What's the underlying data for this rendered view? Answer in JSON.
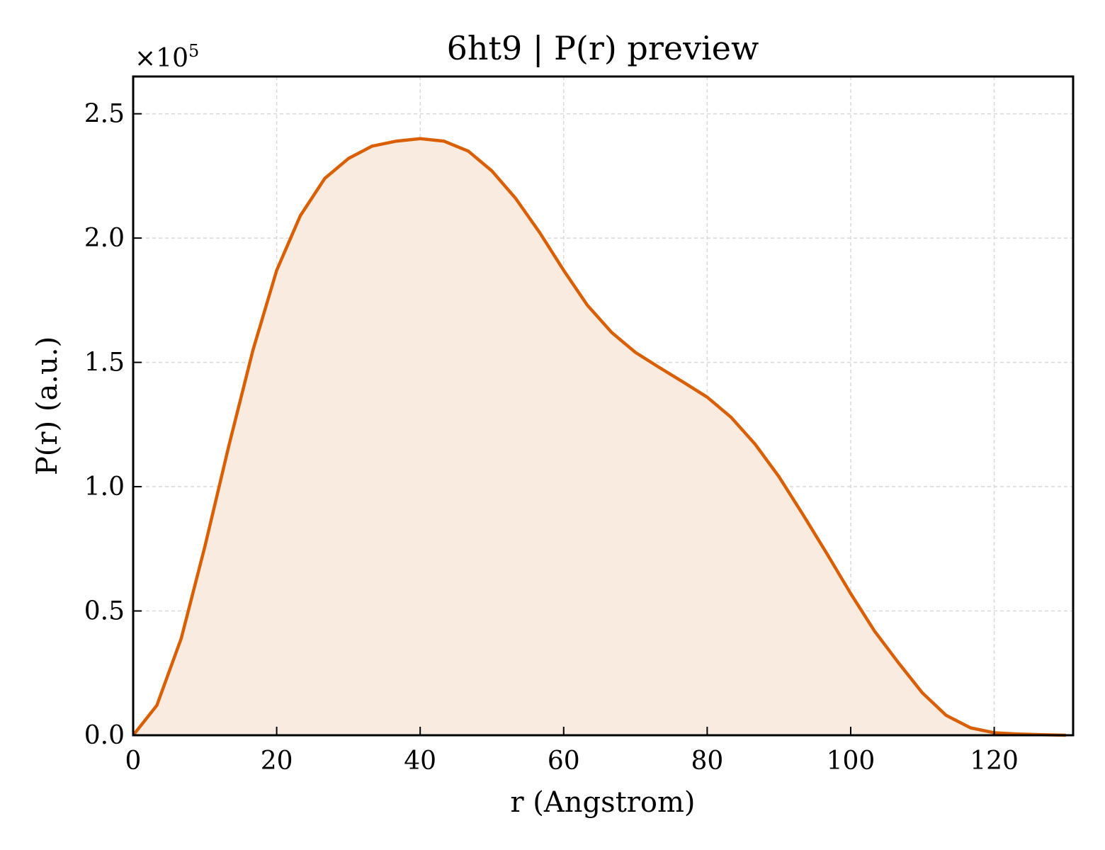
{
  "chart_data": {
    "type": "area",
    "title": "6ht9 | P(r) preview",
    "xlabel": "r (Angstrom)",
    "ylabel": "P(r) (a.u.)",
    "y_scale_multiplier": "×10",
    "y_scale_exponent": "5",
    "xlim": [
      0,
      131
    ],
    "ylim": [
      0,
      2.65
    ],
    "x_ticks": [
      0,
      20,
      40,
      60,
      80,
      100,
      120
    ],
    "x_tick_labels": [
      "0",
      "20",
      "40",
      "60",
      "80",
      "100",
      "120"
    ],
    "y_ticks": [
      0,
      0.5,
      1.0,
      1.5,
      2.0,
      2.5
    ],
    "y_tick_labels": [
      "0.0",
      "0.5",
      "1.0",
      "1.5",
      "2.0",
      "2.5"
    ],
    "grid": true,
    "line_color": "#d95f02",
    "fill_color": "#f9ebe0",
    "series": [
      {
        "x": [
          0,
          3.3,
          6.7,
          10.0,
          13.3,
          16.7,
          20.0,
          23.3,
          26.7,
          30.0,
          33.3,
          36.7,
          40.0,
          43.3,
          46.7,
          50.0,
          53.3,
          56.7,
          60.0,
          63.3,
          66.7,
          70.0,
          73.3,
          76.7,
          80.0,
          83.3,
          86.7,
          90.0,
          93.3,
          96.7,
          100.0,
          103.3,
          106.7,
          110.0,
          113.3,
          116.7,
          120.0,
          123.3,
          126.7,
          130.0
        ],
        "values": [
          0.0,
          0.12,
          0.39,
          0.76,
          1.16,
          1.55,
          1.87,
          2.09,
          2.24,
          2.32,
          2.37,
          2.39,
          2.4,
          2.39,
          2.35,
          2.27,
          2.16,
          2.02,
          1.87,
          1.73,
          1.62,
          1.54,
          1.48,
          1.42,
          1.36,
          1.28,
          1.17,
          1.04,
          0.89,
          0.73,
          0.57,
          0.42,
          0.29,
          0.17,
          0.08,
          0.03,
          0.01,
          0.005,
          0.002,
          0.0
        ]
      }
    ]
  }
}
